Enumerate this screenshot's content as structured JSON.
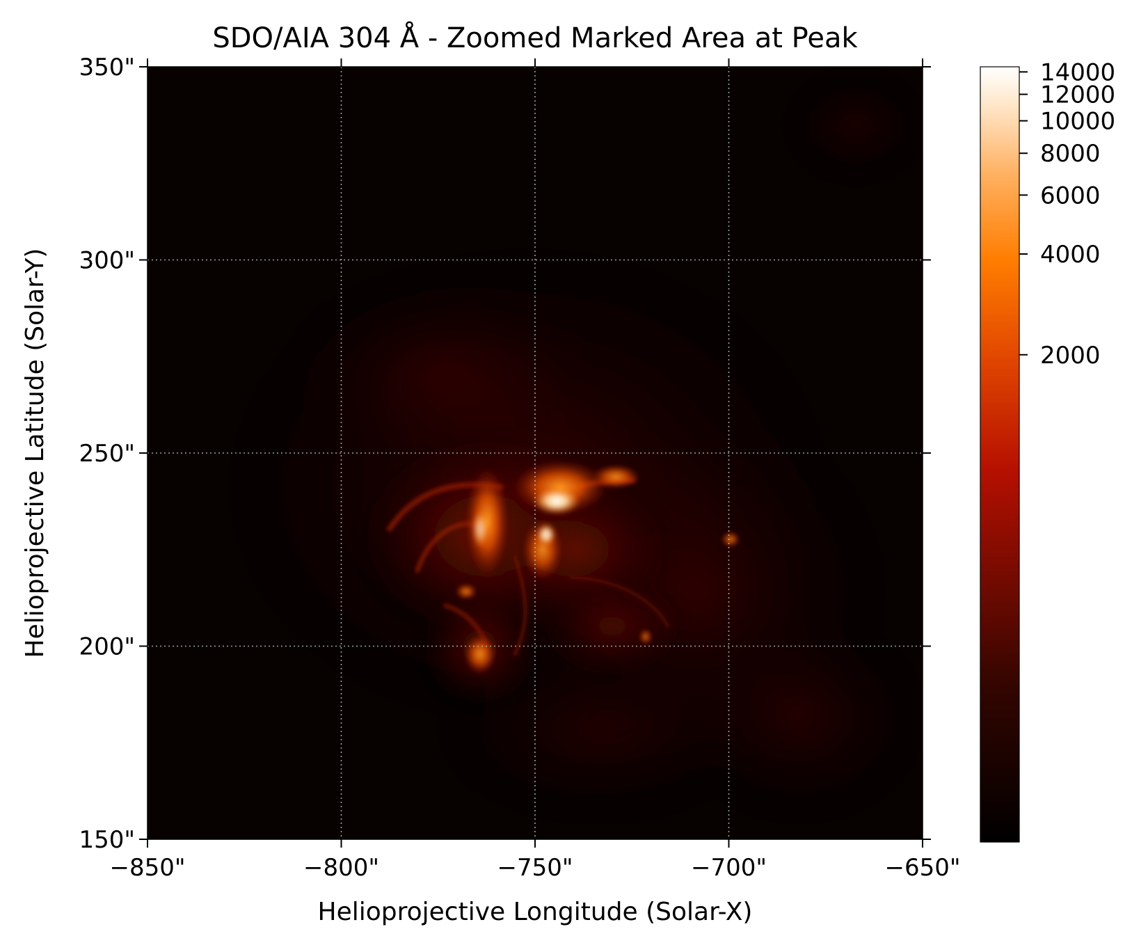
{
  "title": "SDO/AIA 304 Å - Zoomed Marked Area at Peak",
  "image": {
    "description_free": true,
    "x_range": [
      -850,
      -650
    ],
    "y_range": [
      150,
      350
    ],
    "x_unit": "arcsec",
    "y_unit": "arcsec",
    "grid": true,
    "colormap": "sdoaia304",
    "colors": {
      "background": "#070100",
      "dim": "#2a0400",
      "mid": "#8a1200",
      "bright": "#ff8000",
      "peak": "#fff8ee"
    }
  },
  "axes": {
    "xlabel": "Helioprojective Longitude (Solar-X)",
    "ylabel": "Helioprojective Latitude (Solar-Y)",
    "xticks": [
      {
        "value": -850,
        "label": "−850\""
      },
      {
        "value": -800,
        "label": "−800\""
      },
      {
        "value": -750,
        "label": "−750\""
      },
      {
        "value": -700,
        "label": "−700\""
      },
      {
        "value": -650,
        "label": "−650\""
      }
    ],
    "yticks": [
      {
        "value": 150,
        "label": "150\""
      },
      {
        "value": 200,
        "label": "200\""
      },
      {
        "value": 250,
        "label": "250\""
      },
      {
        "value": 300,
        "label": "300\""
      },
      {
        "value": 350,
        "label": "350\""
      }
    ]
  },
  "colorbar": {
    "scale": "log",
    "range": [
      70,
      14500
    ],
    "ticks": [
      {
        "value": 2000,
        "label": "2000"
      },
      {
        "value": 4000,
        "label": "4000"
      },
      {
        "value": 6000,
        "label": "6000"
      },
      {
        "value": 8000,
        "label": "8000"
      },
      {
        "value": 10000,
        "label": "10000"
      },
      {
        "value": 12000,
        "label": "12000"
      },
      {
        "value": 14000,
        "label": "14000"
      }
    ]
  }
}
